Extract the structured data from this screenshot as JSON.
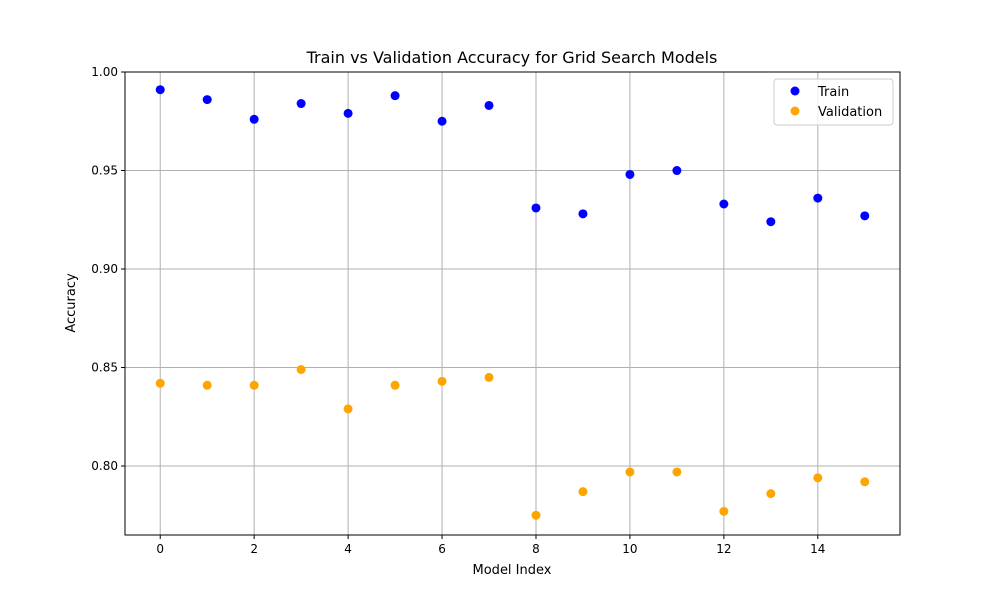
{
  "chart_data": {
    "type": "scatter",
    "title": "Train vs Validation Accuracy for Grid Search Models",
    "xlabel": "Model Index",
    "ylabel": "Accuracy",
    "xlim": [
      -0.75,
      15.75
    ],
    "ylim": [
      0.765,
      1.0
    ],
    "xticks": [
      "0",
      "2",
      "4",
      "6",
      "8",
      "10",
      "12",
      "14"
    ],
    "yticks": [
      "0.80",
      "0.85",
      "0.90",
      "0.95",
      "1.00"
    ],
    "grid": true,
    "legend_position": "top-right",
    "x": [
      0,
      1,
      2,
      3,
      4,
      5,
      6,
      7,
      8,
      9,
      10,
      11,
      12,
      13,
      14,
      15
    ],
    "series": [
      {
        "name": "Train",
        "color": "#0000ff",
        "values": [
          0.991,
          0.986,
          0.976,
          0.984,
          0.979,
          0.988,
          0.975,
          0.983,
          0.931,
          0.928,
          0.948,
          0.95,
          0.933,
          0.924,
          0.936,
          0.927
        ]
      },
      {
        "name": "Validation",
        "color": "#ffa500",
        "values": [
          0.842,
          0.841,
          0.841,
          0.849,
          0.829,
          0.841,
          0.843,
          0.845,
          0.775,
          0.787,
          0.797,
          0.797,
          0.777,
          0.786,
          0.794,
          0.792
        ]
      }
    ]
  }
}
